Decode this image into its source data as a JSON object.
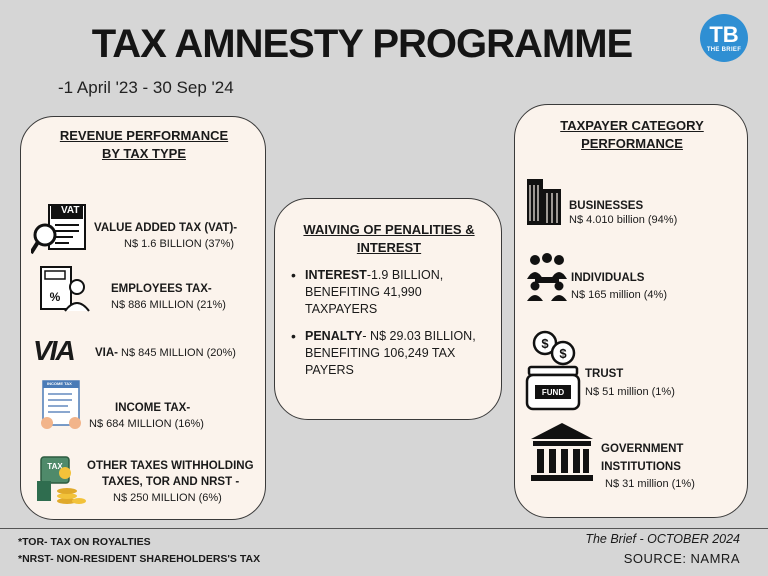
{
  "title": "TAX AMNESTY PROGRAMME",
  "dates": "-1 April '23 - 30 Sep '24",
  "logo": {
    "initials": "TB",
    "name": "THE BRIEF"
  },
  "revenue": {
    "heading_l1": "REVENUE PERFORMANCE",
    "heading_l2": "BY TAX TYPE",
    "items": [
      {
        "icon": "vat-icon",
        "title": "VALUE ADDED TAX (VAT)-",
        "value": "N$ 1.6 BILLION (37%)"
      },
      {
        "icon": "employees-tax-icon",
        "title": "EMPLOYEES TAX-",
        "value": "N$ 886 MILLION (21%)"
      },
      {
        "icon": "via-logo",
        "title": "VIA-",
        "value": "N$ 845 MILLION (20%)",
        "logo_text": "VIA"
      },
      {
        "icon": "income-tax-form-icon",
        "title": "INCOME TAX-",
        "value": "N$ 684 MILLION (16%)",
        "form_label": "INCOME TAX"
      },
      {
        "icon": "tax-coins-icon",
        "title_l1": "OTHER TAXES WITHHOLDING",
        "title_l2": "TAXES,  TOR AND NRST -",
        "value": "N$ 250 MILLION (6%)"
      }
    ]
  },
  "waiving": {
    "heading_l1": "WAIVING OF PENALITIES &",
    "heading_l2": "INTEREST",
    "interest": {
      "label": "INTEREST",
      "l1": "-1.9 BILLION,",
      "l2": "BENEFITING 41,990",
      "l3": "TAXPAYERS"
    },
    "penalty": {
      "label": "PENALTY",
      "l1": "- N$ 29.03 BILLION,",
      "l2": "BENEFITING 106,249 TAX",
      "l3": "PAYERS"
    }
  },
  "category": {
    "heading_l1": "TAXPAYER CATEGORY",
    "heading_l2": "PERFORMANCE",
    "items": [
      {
        "icon": "buildings-icon",
        "title": "BUSINESSES",
        "value": "N$ 4.010 billion (94%)"
      },
      {
        "icon": "people-icon",
        "title": "INDIVIDUALS",
        "value": "N$ 165 million (4%)"
      },
      {
        "icon": "fund-jar-icon",
        "title": "TRUST",
        "value": "N$ 51 million (1%)",
        "jar_label": "FUND"
      },
      {
        "icon": "government-building-icon",
        "title_l1": "GOVERNMENT",
        "title_l2": "INSTITUTIONS",
        "value": "N$ 31 million (1%)"
      }
    ]
  },
  "footnotes": {
    "tor": "*TOR- TAX ON ROYALTIES",
    "nrst": "*NRST- NON-RESIDENT SHAREHOLDERS'S TAX"
  },
  "credit": "The Brief - OCTOBER 2024",
  "source": "SOURCE: NAMRA"
}
